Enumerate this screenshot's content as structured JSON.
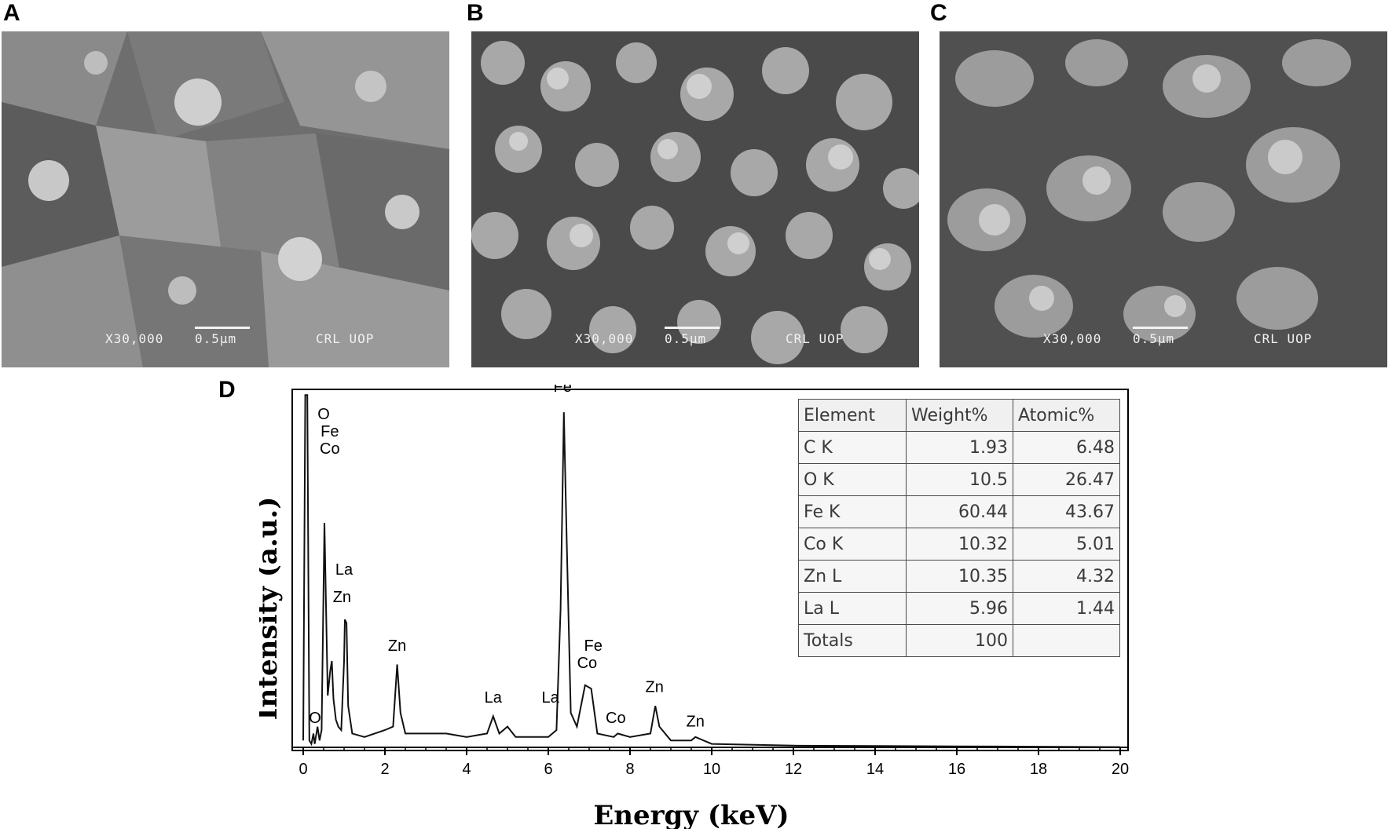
{
  "panels": {
    "a": {
      "letter": "A",
      "magnification": "X30,000",
      "scale": "0.5µm",
      "lab": "CRL UOP"
    },
    "b": {
      "letter": "B",
      "magnification": "X30,000",
      "scale": "0.5µm",
      "lab": "CRL UOP"
    },
    "c": {
      "letter": "C",
      "magnification": "X30,000",
      "scale": "0.5µm",
      "lab": "CRL UOP"
    },
    "d": {
      "letter": "D"
    }
  },
  "chart_data": {
    "type": "line",
    "title": "",
    "xlabel": "Energy (keV)",
    "ylabel": "Intensity (a.u.)",
    "xlim": [
      0,
      20
    ],
    "x_ticks": [
      "0",
      "2",
      "4",
      "6",
      "8",
      "10",
      "12",
      "14",
      "16",
      "18",
      "20"
    ],
    "y_range_relative": [
      0,
      1
    ],
    "grid": false,
    "series": [
      {
        "values_description_x": "keV",
        "points": [
          [
            0.0,
            0.02
          ],
          [
            0.05,
            1.05
          ],
          [
            0.1,
            1.05
          ],
          [
            0.15,
            0.02
          ],
          [
            0.2,
            0.01
          ],
          [
            0.25,
            0.04
          ],
          [
            0.28,
            0.01
          ],
          [
            0.35,
            0.06
          ],
          [
            0.4,
            0.02
          ],
          [
            0.45,
            0.05
          ],
          [
            0.52,
            0.65
          ],
          [
            0.56,
            0.4
          ],
          [
            0.6,
            0.15
          ],
          [
            0.66,
            0.22
          ],
          [
            0.7,
            0.25
          ],
          [
            0.74,
            0.14
          ],
          [
            0.8,
            0.08
          ],
          [
            0.86,
            0.06
          ],
          [
            0.93,
            0.05
          ],
          [
            1.0,
            0.25
          ],
          [
            1.02,
            0.37
          ],
          [
            1.06,
            0.36
          ],
          [
            1.1,
            0.12
          ],
          [
            1.2,
            0.04
          ],
          [
            1.5,
            0.03
          ],
          [
            2.0,
            0.05
          ],
          [
            2.2,
            0.06
          ],
          [
            2.3,
            0.24
          ],
          [
            2.38,
            0.1
          ],
          [
            2.5,
            0.04
          ],
          [
            3.0,
            0.04
          ],
          [
            3.5,
            0.04
          ],
          [
            4.0,
            0.03
          ],
          [
            4.5,
            0.04
          ],
          [
            4.65,
            0.09
          ],
          [
            4.8,
            0.04
          ],
          [
            5.0,
            0.06
          ],
          [
            5.2,
            0.03
          ],
          [
            5.8,
            0.03
          ],
          [
            6.0,
            0.03
          ],
          [
            6.2,
            0.05
          ],
          [
            6.3,
            0.4
          ],
          [
            6.38,
            0.97
          ],
          [
            6.45,
            0.6
          ],
          [
            6.55,
            0.1
          ],
          [
            6.7,
            0.06
          ],
          [
            6.9,
            0.18
          ],
          [
            7.05,
            0.17
          ],
          [
            7.2,
            0.04
          ],
          [
            7.6,
            0.03
          ],
          [
            7.7,
            0.04
          ],
          [
            8.0,
            0.03
          ],
          [
            8.5,
            0.04
          ],
          [
            8.62,
            0.12
          ],
          [
            8.72,
            0.06
          ],
          [
            9.0,
            0.02
          ],
          [
            9.5,
            0.02
          ],
          [
            9.6,
            0.03
          ],
          [
            10.0,
            0.01
          ],
          [
            12.0,
            0.005
          ],
          [
            14.0,
            0.004
          ],
          [
            16.0,
            0.003
          ],
          [
            18.0,
            0.002
          ],
          [
            20.0,
            0.001
          ]
        ]
      }
    ],
    "peak_labels": [
      {
        "text": "O",
        "x": 0.5,
        "y": 0.95
      },
      {
        "text": "Fe",
        "x": 0.65,
        "y": 0.9
      },
      {
        "text": "Co",
        "x": 0.65,
        "y": 0.85
      },
      {
        "text": "La",
        "x": 1.0,
        "y": 0.5
      },
      {
        "text": "Zn",
        "x": 0.95,
        "y": 0.42
      },
      {
        "text": "O",
        "x": 0.29,
        "y": 0.07
      },
      {
        "text": "Zn",
        "x": 2.3,
        "y": 0.28
      },
      {
        "text": "La",
        "x": 4.65,
        "y": 0.13
      },
      {
        "text": "La",
        "x": 6.05,
        "y": 0.13
      },
      {
        "text": "Fe",
        "x": 6.35,
        "y": 1.03
      },
      {
        "text": "Fe",
        "x": 7.1,
        "y": 0.28
      },
      {
        "text": "Co",
        "x": 6.95,
        "y": 0.23
      },
      {
        "text": "Co",
        "x": 7.65,
        "y": 0.07
      },
      {
        "text": "Zn",
        "x": 8.6,
        "y": 0.16
      },
      {
        "text": "Zn",
        "x": 9.6,
        "y": 0.06
      }
    ]
  },
  "composition_table": {
    "headers": [
      "Element",
      "Weight%",
      "Atomic%"
    ],
    "rows": [
      [
        "C K",
        "1.93",
        "6.48"
      ],
      [
        "O K",
        "10.5",
        "26.47"
      ],
      [
        "Fe K",
        "60.44",
        "43.67"
      ],
      [
        "Co K",
        "10.32",
        "5.01"
      ],
      [
        "Zn L",
        "10.35",
        "4.32"
      ],
      [
        "La L",
        "5.96",
        "1.44"
      ],
      [
        "Totals",
        "100",
        ""
      ]
    ]
  }
}
